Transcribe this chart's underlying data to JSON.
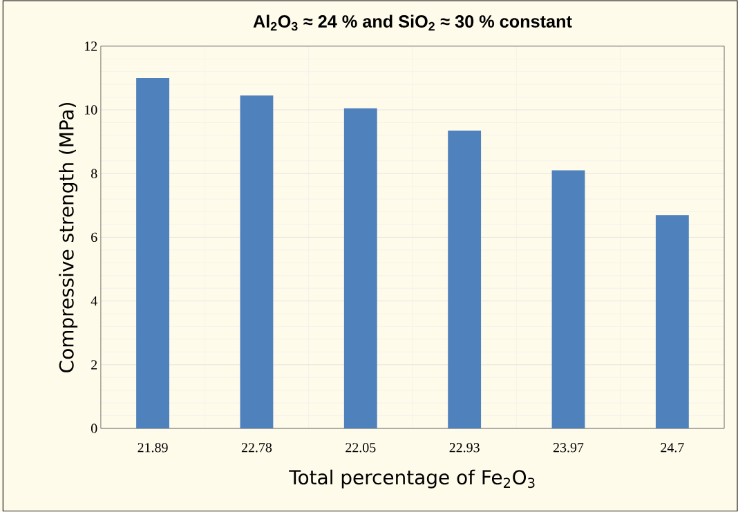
{
  "chart_data": {
    "type": "bar",
    "title": "Al$_{2}$O$_{3}$ ≈ 24 % and SiO$_{2}$ ≈ 30 % constant",
    "xlabel": "Total percentage of Fe$_{2}$O$_{3}$",
    "ylabel": "Compressive strength (MPa)",
    "categories": [
      "21.89",
      "22.78",
      "22.05",
      "22.93",
      "23.97",
      "24.7"
    ],
    "values": [
      11.0,
      10.45,
      10.05,
      9.35,
      8.1,
      6.7
    ],
    "color": "#4f81bd",
    "ylim": [
      0,
      12
    ],
    "yticks": [
      0,
      2,
      4,
      6,
      8,
      10,
      12
    ],
    "grid": true
  }
}
